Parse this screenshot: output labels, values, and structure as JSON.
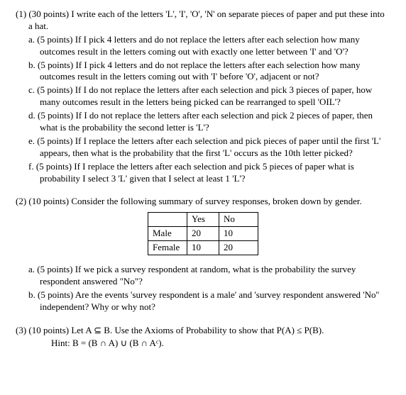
{
  "q1": {
    "header": "(1) (30 points) I write each of the letters 'L', 'I', 'O', 'N' on separate pieces of paper and put these into a hat.",
    "a": "a.   (5 points) If I pick 4 letters and do not replace the letters after each selection how many outcomes result in the letters coming out with exactly one letter between 'I' and 'O'?",
    "b": "b.   (5 points) If I pick 4 letters and do not replace the letters after each selection how many outcomes result in the letters coming out with 'I' before 'O', adjacent or not?",
    "c": "c.   (5 points) If I do not replace the letters after each selection and pick 3 pieces of paper, how many outcomes result in the letters being picked can be rearranged to spell 'OIL'?",
    "d": "d.   (5 points) If I do not replace the letters after each selection and pick 2 pieces of paper, then what is the probability the second letter is 'L'?",
    "e": "e.   (5 points) If I replace the letters after each selection and pick pieces of paper until the first 'L' appears, then what is the probability that the first 'L' occurs as the 10th letter picked?",
    "f": "f.   (5 points) If I replace the letters after each selection and pick 5 pieces of paper what is probability I select 3 'L' given that I select at least 1 'L'?"
  },
  "q2": {
    "intro": "(2) (10 points) Consider the following summary of survey responses, broken down by gender.",
    "table": {
      "headers": [
        "",
        "Yes",
        "No"
      ],
      "rows": [
        [
          "Male",
          "20",
          "10"
        ],
        [
          "Female",
          "10",
          "20"
        ]
      ],
      "col_widths": [
        "55px",
        "45px",
        "55px"
      ]
    },
    "a": "a.   (5 points) If we pick a survey respondent at random, what is the probability the survey respondent answered \"No\"?",
    "b": "b.   (5 points) Are the events 'survey respondent is a male' and 'survey respondent answered 'No'' independent? Why or why not?"
  },
  "q3": {
    "header": "(3) (10 points) Let A ⊆ B. Use the Axioms of Probability to show that P(A) ≤ P(B).",
    "hint": "Hint: B = (B ∩ A) ∪ (B ∩ Aᶜ)."
  }
}
